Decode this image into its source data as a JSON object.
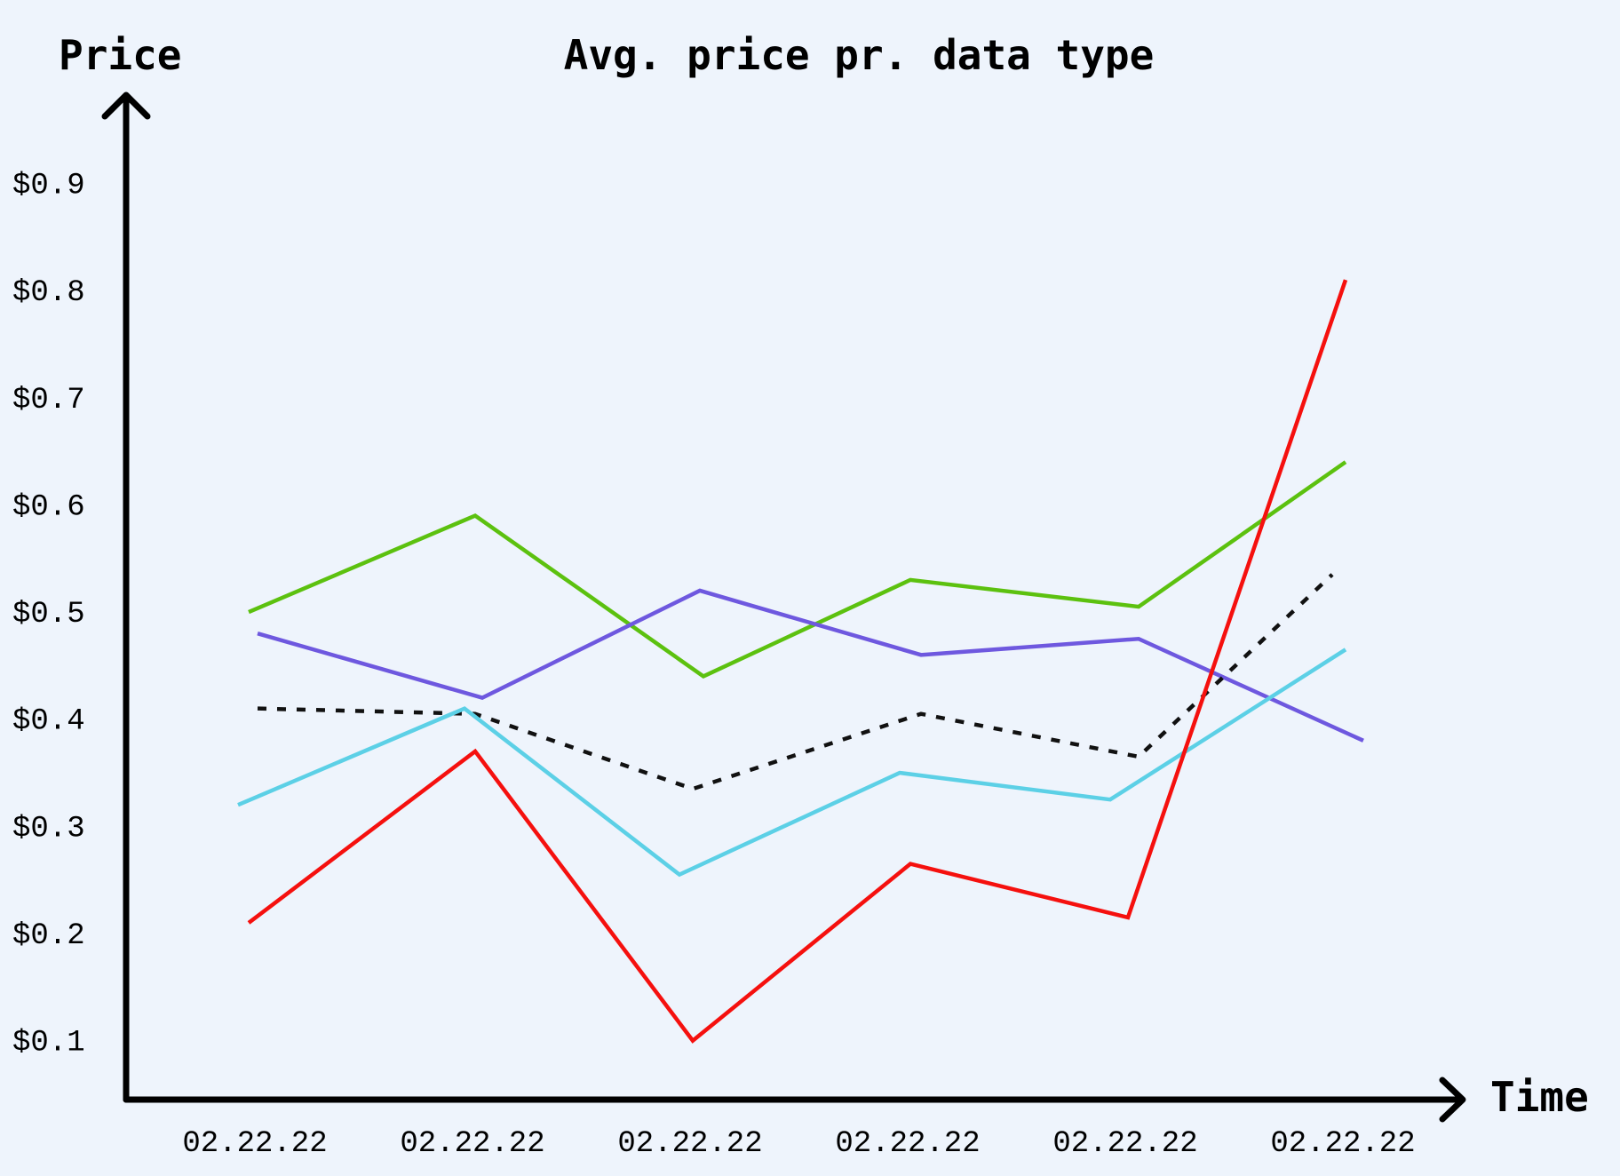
{
  "chart_data": {
    "type": "line",
    "title": "Avg. price pr. data type",
    "ylabel": "Price",
    "xlabel": "Time",
    "categories": [
      "02.22.22",
      "02.22.22",
      "02.22.22",
      "02.22.22",
      "02.22.22",
      "02.22.22"
    ],
    "y_ticks": [
      "$0.1",
      "$0.2",
      "$0.3",
      "$0.4",
      "$0.5",
      "$0.6",
      "$0.7",
      "$0.8",
      "$0.9"
    ],
    "y_tick_values": [
      0.1,
      0.2,
      0.3,
      0.4,
      0.5,
      0.6,
      0.7,
      0.8,
      0.9
    ],
    "ylim": [
      0.045,
      0.98
    ],
    "grid": false,
    "series": [
      {
        "color": "#5cc10f",
        "style": "solid",
        "values": [
          0.5,
          0.59,
          0.44,
          0.53,
          0.505,
          0.64
        ]
      },
      {
        "color": "#6e58df",
        "style": "solid",
        "values": [
          0.48,
          0.42,
          0.52,
          0.46,
          0.475,
          0.38
        ]
      },
      {
        "color": "#111111",
        "style": "dotted",
        "values": [
          0.41,
          0.405,
          0.335,
          0.405,
          0.365,
          0.535
        ]
      },
      {
        "color": "#5cd0e6",
        "style": "solid",
        "values": [
          0.32,
          0.41,
          0.255,
          0.35,
          0.325,
          0.465
        ]
      },
      {
        "color": "#f5100e",
        "style": "solid",
        "values": [
          0.21,
          0.37,
          0.1,
          0.265,
          0.215,
          0.81
        ]
      }
    ]
  }
}
